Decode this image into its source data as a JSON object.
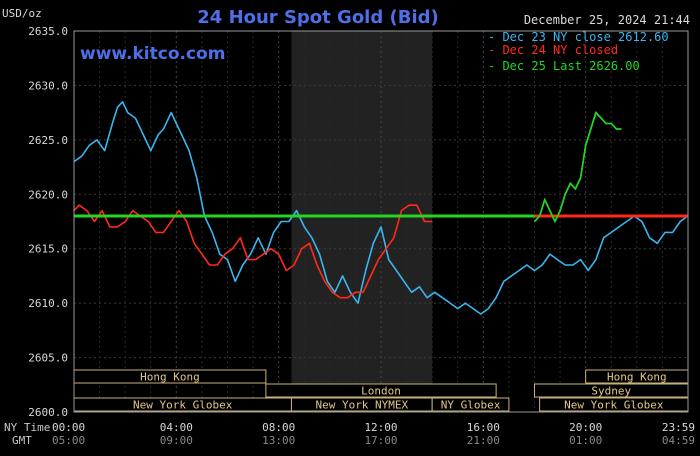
{
  "header": {
    "unit": "USD/oz",
    "title": "24 Hour Spot Gold (Bid)",
    "site": "www.kitco.com",
    "datetime": "December 25, 2024 21:44"
  },
  "legend": [
    {
      "label": "Dec 23 NY close 2612.60",
      "color": "#39b6f0"
    },
    {
      "label": "Dec 24 NY closed",
      "color": "#ff2a1a"
    },
    {
      "label": "Dec 25 Last 2626.00",
      "color": "#22d622"
    }
  ],
  "row_labels": {
    "ny": "NY Time",
    "gmt": "GMT"
  },
  "sessions": [
    {
      "name": "Hong Kong",
      "row": 1,
      "start": 0,
      "end": 7.5
    },
    {
      "name": "London",
      "row": 2,
      "start": 7.5,
      "end": 16.5
    },
    {
      "name": "New York Globex",
      "row": 3,
      "start": 0,
      "end": 8.5
    },
    {
      "name": "New York NYMEX",
      "row": 3,
      "start": 8.5,
      "end": 14
    },
    {
      "name": "NY Globex",
      "row": 3,
      "start": 14,
      "end": 17
    },
    {
      "name": "Hong Kong",
      "row": 1,
      "start": 20,
      "end": 24
    },
    {
      "name": "Sydney",
      "row": 2,
      "start": 18,
      "end": 24
    },
    {
      "name": "New York Globex",
      "row": 3,
      "start": 18.2,
      "end": 24
    }
  ],
  "chart_data": {
    "type": "line",
    "xlim": [
      0,
      24
    ],
    "ylim": [
      2600,
      2635
    ],
    "yticks": [
      2600,
      2605,
      2610,
      2615,
      2620,
      2625,
      2630,
      2635
    ],
    "ytick_labels": [
      "2600.0",
      "2605.0",
      "2610.0",
      "2615.0",
      "2620.0",
      "2625.0",
      "2630.0",
      "2635.0"
    ],
    "xticks": [
      0,
      4,
      8,
      12,
      16,
      20,
      23.98
    ],
    "xtick_labels_ny": [
      "00:00",
      "04:00",
      "08:00",
      "12:00",
      "16:00",
      "20:00",
      "23:59"
    ],
    "xtick_labels_gmt": [
      "05:00",
      "09:00",
      "13:00",
      "17:00",
      "21:00",
      "01:00",
      "04:59"
    ],
    "shaded_region": [
      8.5,
      14
    ],
    "reference_line": 2618,
    "grid": true,
    "series": [
      {
        "name": "Dec 23 NY close 2612.60",
        "color": "#39b6f0",
        "x": [
          0,
          0.3,
          0.6,
          0.9,
          1.2,
          1.5,
          1.7,
          1.9,
          2.1,
          2.4,
          2.7,
          3.0,
          3.3,
          3.5,
          3.8,
          4.0,
          4.2,
          4.5,
          4.8,
          5.1,
          5.4,
          5.7,
          6.0,
          6.3,
          6.6,
          6.9,
          7.2,
          7.5,
          7.8,
          8.1,
          8.4,
          8.7,
          9.0,
          9.3,
          9.6,
          9.9,
          10.2,
          10.5,
          10.8,
          11.1,
          11.4,
          11.7,
          12.0,
          12.3,
          12.6,
          12.9,
          13.2,
          13.5,
          13.8,
          14.1,
          14.4,
          14.7,
          15.0,
          15.3,
          15.6,
          15.9,
          16.2,
          16.5,
          16.8,
          17.1,
          17.4,
          17.7,
          18.0,
          18.3,
          18.6,
          18.9,
          19.2,
          19.5,
          19.8,
          20.1,
          20.4,
          20.7,
          21.0,
          21.3,
          21.6,
          21.9,
          22.2,
          22.5,
          22.8,
          23.1,
          23.4,
          23.7,
          23.98
        ],
        "y": [
          2623,
          2623.5,
          2624.5,
          2625,
          2624,
          2626.5,
          2628,
          2628.5,
          2627.5,
          2627,
          2625.5,
          2624,
          2625.5,
          2626,
          2627.5,
          2626.5,
          2625.5,
          2624,
          2621.5,
          2618,
          2616.5,
          2614.5,
          2614,
          2612,
          2613.5,
          2614.5,
          2616,
          2614.5,
          2616.5,
          2617.5,
          2617.5,
          2618.5,
          2617,
          2616,
          2614.5,
          2612,
          2611,
          2612.5,
          2611,
          2610,
          2613,
          2615.5,
          2617,
          2614,
          2613,
          2612,
          2611,
          2611.5,
          2610.5,
          2611,
          2610.5,
          2610,
          2609.5,
          2610,
          2609.5,
          2609,
          2609.5,
          2610.5,
          2612,
          2612.5,
          2613,
          2613.5,
          2613,
          2613.5,
          2614.5,
          2614,
          2613.5,
          2613.5,
          2614,
          2613,
          2614,
          2616,
          2616.5,
          2617,
          2617.5,
          2618,
          2617.5,
          2616,
          2615.5,
          2616.5,
          2616.5,
          2617.5,
          2618
        ]
      },
      {
        "name": "Dec 24 NY closed",
        "color": "#ff2a1a",
        "x": [
          0,
          0.2,
          0.5,
          0.8,
          1.1,
          1.4,
          1.7,
          2.0,
          2.3,
          2.6,
          2.9,
          3.2,
          3.5,
          3.8,
          4.1,
          4.4,
          4.7,
          5.0,
          5.3,
          5.6,
          5.9,
          6.2,
          6.5,
          6.8,
          7.1,
          7.4,
          7.7,
          8.0,
          8.3,
          8.6,
          8.9,
          9.2,
          9.5,
          9.8,
          10.1,
          10.4,
          10.7,
          11.0,
          11.3,
          11.6,
          11.9,
          12.2,
          12.5,
          12.8,
          13.1,
          13.4,
          13.7,
          14.0
        ],
        "y": [
          2618.5,
          2619,
          2618.5,
          2617.5,
          2618.5,
          2617,
          2617,
          2617.5,
          2618.5,
          2618,
          2617.5,
          2616.5,
          2616.5,
          2617.5,
          2618.5,
          2617.5,
          2615.5,
          2614.5,
          2613.5,
          2613.5,
          2614.5,
          2615,
          2616,
          2614,
          2614,
          2614.5,
          2615,
          2614.5,
          2613,
          2613.5,
          2615,
          2615.5,
          2613.5,
          2612,
          2611,
          2610.5,
          2610.5,
          2611,
          2611,
          2612.5,
          2614,
          2615,
          2616,
          2618.5,
          2619,
          2619,
          2617.5,
          2617.5
        ]
      },
      {
        "name": "Dec 25 Last 2626.00",
        "color": "#22d622",
        "x": [
          18.0,
          18.2,
          18.4,
          18.6,
          18.8,
          19.0,
          19.2,
          19.4,
          19.6,
          19.8,
          20.0,
          20.2,
          20.4,
          20.6,
          20.8,
          21.0,
          21.2,
          21.4
        ],
        "y": [
          2617.5,
          2618,
          2619.5,
          2618.5,
          2617.5,
          2618.5,
          2620,
          2621,
          2620.5,
          2621.5,
          2624.5,
          2626,
          2627.5,
          2627,
          2626.5,
          2626.5,
          2626,
          2626
        ]
      }
    ]
  }
}
